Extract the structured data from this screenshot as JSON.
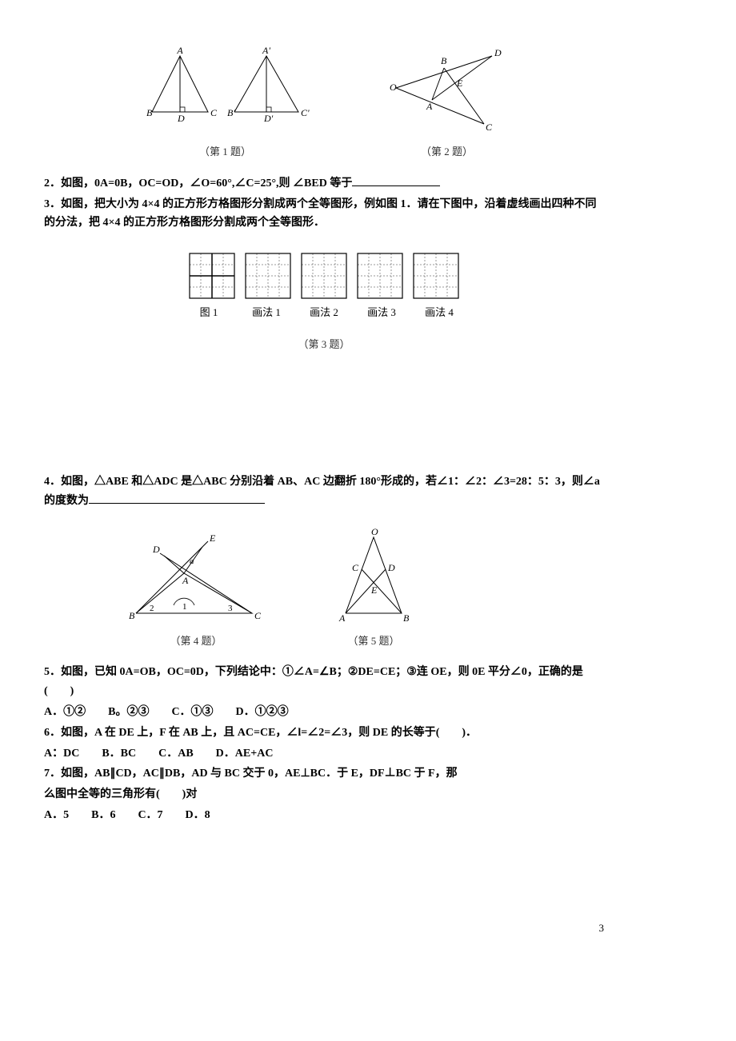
{
  "fig1": {
    "triABC": {
      "A": "A",
      "B": "B",
      "C": "C",
      "D": "D"
    },
    "triApBpCp": {
      "A": "A'",
      "B": "B'",
      "C": "C'",
      "D": "D'"
    },
    "caption": "（第 1 题）",
    "triOBDCA": {
      "O": "O",
      "B": "B",
      "D": "D",
      "A": "A",
      "C": "C",
      "E": "E"
    },
    "caption2": "（第 2 题）"
  },
  "q2": {
    "text_a": "2．如图，0A=0B，OC=OD，∠O=60°,∠C=25°,则 ∠BED 等于",
    "blank": ""
  },
  "q3": {
    "text_a": "3．如图，把大小为 4×4 的正方形方格图形分割成两个全等图形，例如图 1．请在下图中，沿着虚线画出四种不同的分法，把 4×4 的正方形方格图形分割成两个全等图形．"
  },
  "grid": {
    "labels": [
      "图 1",
      "画法 1",
      "画法 2",
      "画法 3",
      "画法 4"
    ],
    "caption": "（第 3 题）"
  },
  "q4": {
    "line1": "4．如图，△ABE 和△ADC 是△ABC 分别沿着 AB、AC 边翻折 180°形成的，若∠1：∠2：∠3=28：5：3，则∠a 的度数为",
    "blank": ""
  },
  "fig4": {
    "A": "A",
    "B": "B",
    "C": "C",
    "D": "D",
    "E": "E",
    "a": "a",
    "n1": "1",
    "n2": "2",
    "n3": "3",
    "caption": "（第 4 题）"
  },
  "fig5": {
    "O": "O",
    "A": "A",
    "B": "B",
    "C": "C",
    "D": "D",
    "E": "E",
    "caption": "（第 5 题）"
  },
  "q5": {
    "text": "5．如图，已知 0A=OB，OC=0D，下列结论中：①∠A=∠B；②DE=CE；③连 OE，则 0E 平分∠0，正确的是(  )",
    "opts": "A．①②  B。②③  C．①③  D．①②③"
  },
  "q6": {
    "text": "6．如图，A 在 DE 上，F 在 AB 上，且 AC=CE，∠l=∠2=∠3，则 DE 的长等于(  )．",
    "opts": "A：DC  B．BC  C．AB  D．AE+AC"
  },
  "q7": {
    "line1": "7．如图，AB∥CD，AC∥DB，AD 与 BC 交于 0，AE⊥BC．于 E，DF⊥BC 于 F，那",
    "line2": "么图中全等的三角形有(  )对",
    "opts": "A．5  B．6  C．7  D．8"
  },
  "page": "3"
}
